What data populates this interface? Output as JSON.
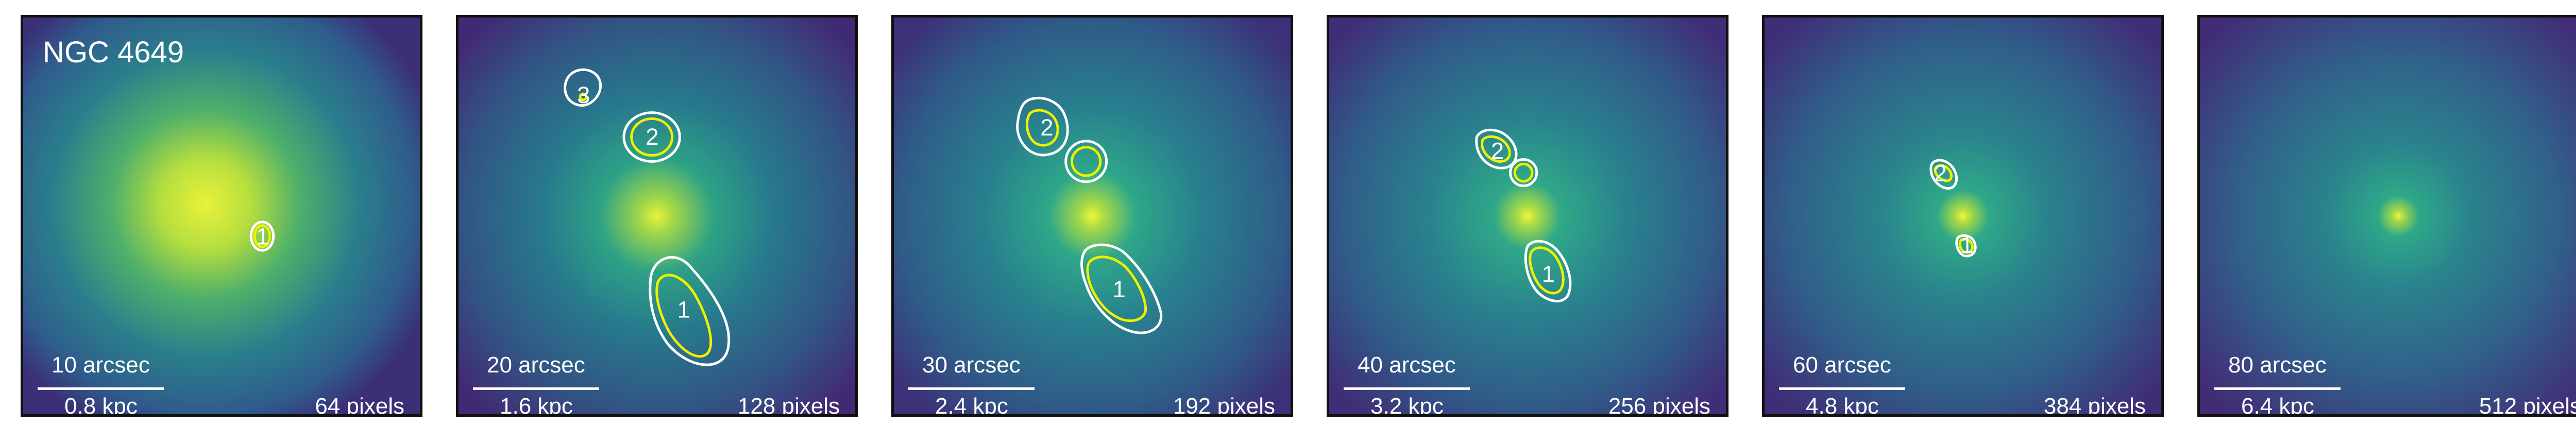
{
  "target": "NGC 4649",
  "colors": {
    "background_dark": "#3c1f6e",
    "mid": "#2a8a8c",
    "core": "#dff33a",
    "contour_outer": "#ffffff",
    "contour_inner": "#f0f000"
  },
  "panels": [
    {
      "arcsec": "10 arcsec",
      "kpc": "0.8 kpc",
      "pixels": "64 pixels",
      "labels": [
        "1"
      ]
    },
    {
      "arcsec": "20 arcsec",
      "kpc": "1.6 kpc",
      "pixels": "128 pixels",
      "labels": [
        "3",
        "2",
        "1"
      ]
    },
    {
      "arcsec": "30 arcsec",
      "kpc": "2.4 kpc",
      "pixels": "192 pixels",
      "labels": [
        "2",
        "1"
      ]
    },
    {
      "arcsec": "40 arcsec",
      "kpc": "3.2 kpc",
      "pixels": "256 pixels",
      "labels": [
        "2",
        "1"
      ]
    },
    {
      "arcsec": "60 arcsec",
      "kpc": "4.8 kpc",
      "pixels": "384 pixels",
      "labels": [
        "2",
        "1"
      ]
    },
    {
      "arcsec": "80 arcsec",
      "kpc": "6.4 kpc",
      "pixels": "512 pixels",
      "labels": []
    }
  ]
}
